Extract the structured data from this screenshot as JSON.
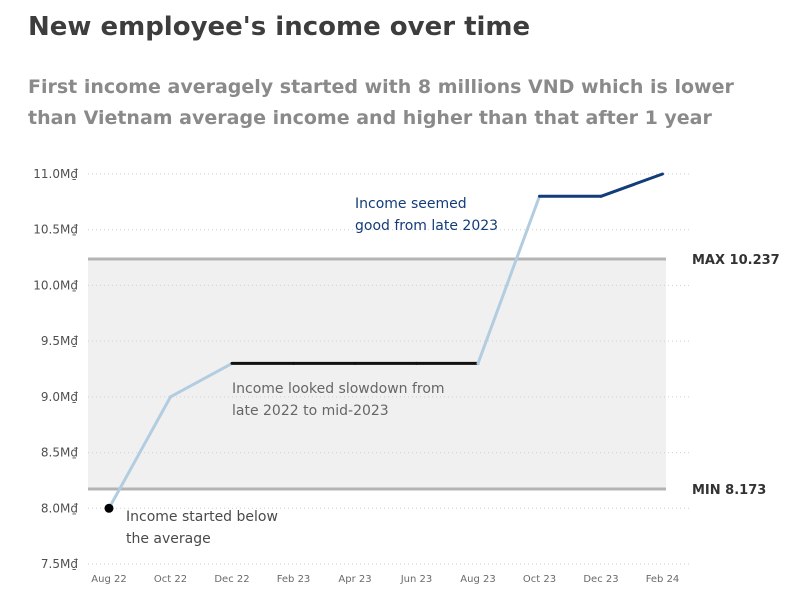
{
  "title": "New employee's income over time",
  "subtitle": "First income averagely started with 8 millions VND which is lower than Vietnam average income and higher than that after 1 year",
  "colors": {
    "early_line": "#b3cde0",
    "flat_line": "#111111",
    "late_line": "#123c7a",
    "band_fill": "#f0f0f0",
    "ref_line": "#b4b4b4",
    "grid": "#cfcfcf"
  },
  "chart_data": {
    "type": "line",
    "title": "New employee's income over time",
    "x": [
      "Aug 22",
      "Oct 22",
      "Dec 22",
      "Feb 23",
      "Apr 23",
      "Jun 23",
      "Aug 23",
      "Oct 23",
      "Dec 23",
      "Feb 24"
    ],
    "series": [
      {
        "values": [
          8.0,
          9.0,
          9.3,
          9.3,
          9.3,
          9.3,
          9.3,
          10.8,
          10.8,
          11.0
        ]
      }
    ],
    "ylim": [
      7.5,
      11.0
    ],
    "yticks": [
      7.5,
      8.0,
      8.5,
      9.0,
      9.5,
      10.0,
      10.5,
      11.0
    ],
    "ytick_labels": [
      "7.5M₫",
      "8.0M₫",
      "8.5M₫",
      "9.0M₫",
      "9.5M₫",
      "10.0M₫",
      "10.5M₫",
      "11.0M₫"
    ],
    "grid": true,
    "reference_lines": [
      {
        "label": "MAX 10.237",
        "value": 10.237
      },
      {
        "label": "MIN 8.173",
        "value": 8.173
      }
    ],
    "annotations": [
      {
        "lines": [
          "Income seemed",
          "good from late 2023"
        ]
      },
      {
        "lines": [
          "Income looked slowdown from",
          "late 2022 to mid-2023"
        ]
      },
      {
        "lines": [
          "Income started below",
          "the average"
        ]
      }
    ]
  }
}
